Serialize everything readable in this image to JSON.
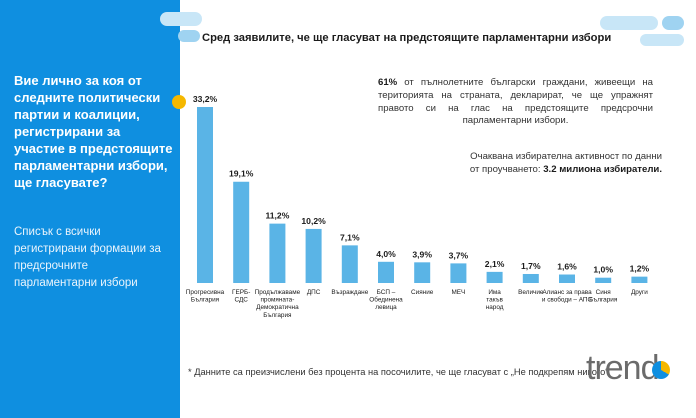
{
  "left_panel": {
    "question": "Вие лично за коя от следните политически партии и коалиции, регистрирани за участие в предстоящите парламентарни избори, ще гласувате?",
    "note": "Списък с всички регистрирани формации за предсрочните парламентарни избори"
  },
  "header": {
    "title": "Сред заявилите, че ще гласуват на предстоящите парламентарни избори"
  },
  "stat": {
    "percent": "61%",
    "text": " от пълнолетните български граждани, живеещи на територията на страната, декларират, че ще упражнят правото си на глас на предстоящите предсрочни парламентарни избори."
  },
  "turnout": {
    "text": "Очаквана избирателна активност по данни от проучването: ",
    "value": "3.2 милиона избиратели."
  },
  "footnote": "* Данните са преизчислени без процента на посочилите, че ще гласуват с „Не подкрепям никого“",
  "logo": "trend",
  "colors": {
    "panel": "#0f8fe0",
    "bar": "#5ab4e6",
    "accent": "#f5b800"
  },
  "chart_data": {
    "type": "bar",
    "categories": [
      [
        "Прогресивна",
        "България"
      ],
      [
        "ГЕРБ-",
        "СДС"
      ],
      [
        "Продължаваме",
        "промяната-",
        "Демократична",
        "България"
      ],
      [
        "ДПС"
      ],
      [
        "Възраждане"
      ],
      [
        "БСП –",
        "Обединена",
        "левица"
      ],
      [
        "Сияние"
      ],
      [
        "МЕЧ"
      ],
      [
        "Има",
        "такъв",
        "народ"
      ],
      [
        "Величие"
      ],
      [
        "Алианс за права",
        "и свободи – АПС"
      ],
      [
        "Синя",
        "България"
      ],
      [
        "Други"
      ]
    ],
    "values": [
      33.2,
      19.1,
      11.2,
      10.2,
      7.1,
      4.0,
      3.9,
      3.7,
      2.1,
      1.7,
      1.6,
      1.0,
      1.2
    ],
    "labels": [
      "33,2%",
      "19,1%",
      "11,2%",
      "10,2%",
      "7,1%",
      "4,0%",
      "3,9%",
      "3,7%",
      "2,1%",
      "1,7%",
      "1,6%",
      "1,0%",
      "1,2%"
    ],
    "ylim": [
      0,
      33.2
    ],
    "grid": false,
    "legend": "none"
  }
}
